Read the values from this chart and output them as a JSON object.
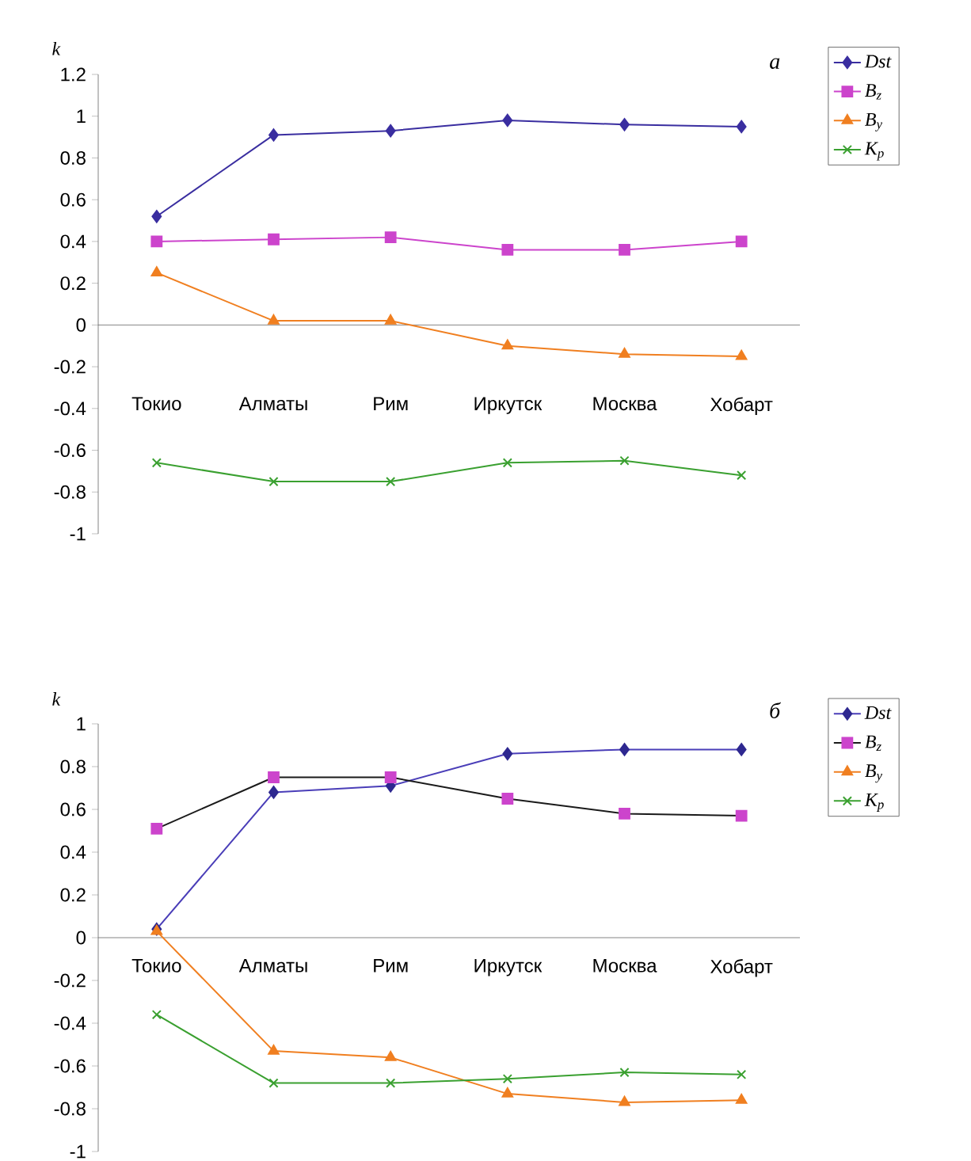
{
  "chart_data": [
    {
      "type": "line",
      "ylabel": "k",
      "annotations": [
        "a"
      ],
      "legend": "right",
      "categories": [
        "Токио",
        "Алматы",
        "Рим",
        "Иркутск",
        "Москва",
        "Хобарт"
      ],
      "ylim": [
        -1,
        1.2
      ],
      "yticks": [
        -1,
        -0.8,
        -0.6,
        -0.4,
        -0.2,
        0,
        0.2,
        0.4,
        0.6,
        0.8,
        1,
        1.2
      ],
      "series": [
        {
          "name": "Dst",
          "color": "#3a2ea0",
          "marker": "diamond",
          "values": [
            0.52,
            0.91,
            0.93,
            0.98,
            0.96,
            0.95
          ]
        },
        {
          "name": "B$_{z}$",
          "color": "#cc44cc",
          "marker": "square",
          "values": [
            0.4,
            0.41,
            0.42,
            0.36,
            0.36,
            0.4
          ]
        },
        {
          "name": "B$_{y}$",
          "color": "#f07f20",
          "marker": "triangle",
          "values": [
            0.25,
            0.02,
            0.02,
            -0.1,
            -0.14,
            -0.15
          ]
        },
        {
          "name": "K$_{p}$",
          "color": "#3aa030",
          "marker": "cross",
          "values": [
            -0.66,
            -0.75,
            -0.75,
            -0.66,
            -0.65,
            -0.72
          ]
        }
      ]
    },
    {
      "type": "line",
      "ylabel": "k",
      "annotations": [
        "б"
      ],
      "legend": "right",
      "categories": [
        "Токио",
        "Алматы",
        "Рим",
        "Иркутск",
        "Москва",
        "Хобарт"
      ],
      "ylim": [
        -1,
        1
      ],
      "yticks": [
        -1,
        -0.8,
        -0.6,
        -0.4,
        -0.2,
        0,
        0.2,
        0.4,
        0.6,
        0.8,
        1
      ],
      "series": [
        {
          "name": "Dst",
          "color": "#4a3eb8",
          "marker": "diamond",
          "colors": [
            "#2e2890",
            "#2e2890",
            "#2e2890",
            "#2e2890",
            "#2e2890",
            "#2e2890"
          ],
          "values": [
            0.04,
            0.68,
            0.71,
            0.86,
            0.88,
            0.88
          ]
        },
        {
          "name": "B$_{z}$",
          "color": "#1a1a1a",
          "marker": "square",
          "colors": [
            "#cc44cc",
            "#cc44cc",
            "#cc44cc",
            "#cc44cc",
            "#cc44cc",
            "#cc44cc"
          ],
          "values": [
            0.51,
            0.75,
            0.75,
            0.65,
            0.58,
            0.57
          ]
        },
        {
          "name": "B$_{y}$",
          "color": "#f07f20",
          "marker": "triangle",
          "values": [
            0.03,
            -0.53,
            -0.56,
            -0.73,
            -0.77,
            -0.76
          ]
        },
        {
          "name": "K$_{p}$",
          "color": "#3aa030",
          "marker": "cross",
          "values": [
            -0.36,
            -0.68,
            -0.68,
            -0.66,
            -0.63,
            -0.64
          ]
        }
      ]
    }
  ]
}
